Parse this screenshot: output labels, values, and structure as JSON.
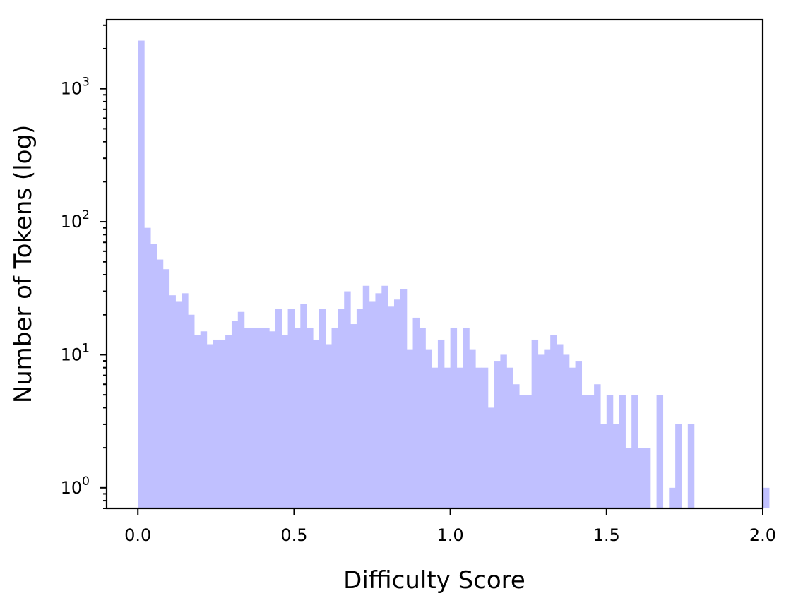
{
  "chart_data": {
    "type": "bar",
    "title": "",
    "xlabel": "Difficulty Score",
    "ylabel": "Number of Tokens (log)",
    "y_scale": "log",
    "xlim": [
      -0.1,
      2.0
    ],
    "ylim": [
      0.7,
      3300
    ],
    "grid": false,
    "legend": "none",
    "bar_color": "#c0c0ff",
    "bin_width": 0.02,
    "bin_start": 0.0,
    "x_ticks": [
      {
        "value": 0.0,
        "label": "0.0"
      },
      {
        "value": 0.5,
        "label": "0.5"
      },
      {
        "value": 1.0,
        "label": "1.0"
      },
      {
        "value": 1.5,
        "label": "1.5"
      },
      {
        "value": 2.0,
        "label": "2.0"
      }
    ],
    "y_major_ticks": [
      {
        "value": 1,
        "base": "10",
        "exp": "0"
      },
      {
        "value": 10,
        "base": "10",
        "exp": "1"
      },
      {
        "value": 100,
        "base": "10",
        "exp": "2"
      },
      {
        "value": 1000,
        "base": "10",
        "exp": "3"
      }
    ],
    "counts": [
      2300,
      90,
      68,
      52,
      44,
      28,
      25,
      29,
      20,
      14,
      15,
      12,
      13,
      13,
      14,
      18,
      21,
      16,
      16,
      16,
      16,
      15,
      22,
      14,
      22,
      16,
      24,
      16,
      13,
      22,
      12,
      16,
      22,
      30,
      17,
      22,
      33,
      25,
      29,
      33,
      23,
      26,
      31,
      11,
      19,
      16,
      11,
      8,
      13,
      8,
      16,
      8,
      16,
      11,
      8,
      8,
      4,
      9,
      10,
      8,
      6,
      5,
      5,
      13,
      10,
      11,
      14,
      12,
      10,
      8,
      9,
      5,
      5,
      6,
      3,
      5,
      3,
      5,
      2,
      5,
      2,
      2,
      0,
      5,
      0,
      1,
      3,
      0,
      3,
      0,
      0,
      0,
      0,
      0,
      0,
      0,
      0,
      0,
      0,
      0,
      1
    ]
  }
}
